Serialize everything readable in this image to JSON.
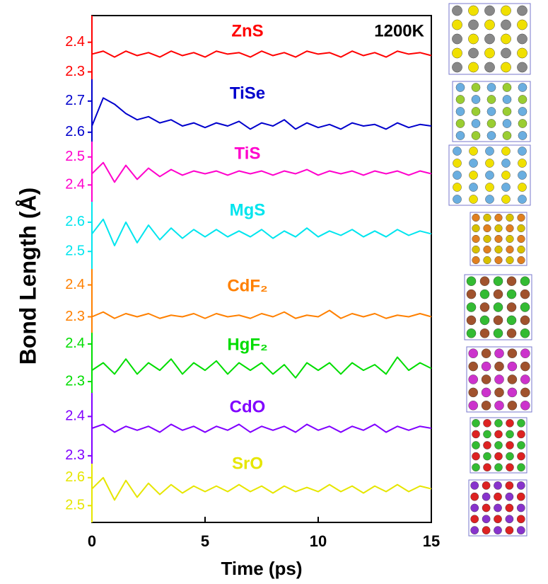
{
  "chart_data": {
    "type": "line",
    "xlabel": "Time (ps)",
    "ylabel": "Bond Length (Å)",
    "annotation": "1200K",
    "xlim": [
      0,
      15
    ],
    "xticks": [
      0,
      5,
      10,
      15
    ],
    "x": [
      0,
      0.5,
      1,
      1.5,
      2,
      2.5,
      3,
      3.5,
      4,
      4.5,
      5,
      5.5,
      6,
      6.5,
      7,
      7.5,
      8,
      8.5,
      9,
      9.5,
      10,
      10.5,
      11,
      11.5,
      12,
      12.5,
      13,
      13.5,
      14,
      14.5,
      15
    ],
    "series": [
      {
        "name": "ZnS",
        "color": "#ff0000",
        "ylim": [
          2.275,
          2.49
        ],
        "yticks": [
          2.3,
          2.4
        ],
        "values": [
          2.36,
          2.37,
          2.35,
          2.37,
          2.355,
          2.365,
          2.35,
          2.37,
          2.355,
          2.365,
          2.35,
          2.37,
          2.36,
          2.365,
          2.35,
          2.37,
          2.355,
          2.365,
          2.35,
          2.37,
          2.36,
          2.365,
          2.35,
          2.37,
          2.355,
          2.365,
          2.35,
          2.37,
          2.36,
          2.365,
          2.355
        ]
      },
      {
        "name": "TiSe",
        "color": "#0000cc",
        "ylim": [
          2.57,
          2.77
        ],
        "yticks": [
          2.6,
          2.7
        ],
        "values": [
          2.62,
          2.71,
          2.69,
          2.66,
          2.64,
          2.65,
          2.63,
          2.64,
          2.62,
          2.63,
          2.615,
          2.63,
          2.62,
          2.635,
          2.61,
          2.63,
          2.62,
          2.64,
          2.61,
          2.63,
          2.615,
          2.625,
          2.61,
          2.63,
          2.62,
          2.625,
          2.61,
          2.63,
          2.615,
          2.625,
          2.62
        ]
      },
      {
        "name": "TiS",
        "color": "#ff00cc",
        "ylim": [
          2.34,
          2.555
        ],
        "yticks": [
          2.4,
          2.5
        ],
        "values": [
          2.44,
          2.48,
          2.41,
          2.47,
          2.42,
          2.46,
          2.43,
          2.455,
          2.435,
          2.45,
          2.44,
          2.45,
          2.435,
          2.45,
          2.44,
          2.45,
          2.435,
          2.45,
          2.44,
          2.455,
          2.435,
          2.45,
          2.44,
          2.45,
          2.435,
          2.45,
          2.44,
          2.45,
          2.435,
          2.45,
          2.44
        ]
      },
      {
        "name": "MgS",
        "color": "#00e5ee",
        "ylim": [
          2.44,
          2.67
        ],
        "yticks": [
          2.5,
          2.6
        ],
        "values": [
          2.56,
          2.61,
          2.52,
          2.6,
          2.53,
          2.59,
          2.54,
          2.58,
          2.545,
          2.575,
          2.55,
          2.575,
          2.55,
          2.57,
          2.55,
          2.575,
          2.545,
          2.57,
          2.55,
          2.58,
          2.55,
          2.57,
          2.555,
          2.575,
          2.55,
          2.57,
          2.55,
          2.575,
          2.555,
          2.57,
          2.56
        ]
      },
      {
        "name": "CdF₂",
        "color": "#ff8000",
        "ylim": [
          2.25,
          2.45
        ],
        "yticks": [
          2.3,
          2.4
        ],
        "values": [
          2.3,
          2.315,
          2.295,
          2.31,
          2.3,
          2.31,
          2.295,
          2.305,
          2.3,
          2.31,
          2.295,
          2.31,
          2.3,
          2.305,
          2.295,
          2.31,
          2.3,
          2.315,
          2.295,
          2.305,
          2.3,
          2.32,
          2.295,
          2.31,
          2.3,
          2.31,
          2.295,
          2.305,
          2.3,
          2.31,
          2.3
        ]
      },
      {
        "name": "HgF₂",
        "color": "#00dd00",
        "ylim": [
          2.27,
          2.43
        ],
        "yticks": [
          2.3,
          2.4
        ],
        "values": [
          2.33,
          2.35,
          2.32,
          2.36,
          2.32,
          2.35,
          2.33,
          2.36,
          2.32,
          2.35,
          2.33,
          2.355,
          2.32,
          2.35,
          2.33,
          2.35,
          2.32,
          2.345,
          2.31,
          2.35,
          2.33,
          2.35,
          2.32,
          2.35,
          2.33,
          2.345,
          2.32,
          2.365,
          2.33,
          2.35,
          2.335
        ]
      },
      {
        "name": "CdO",
        "color": "#8000ff",
        "ylim": [
          2.28,
          2.46
        ],
        "yticks": [
          2.3,
          2.4
        ],
        "values": [
          2.37,
          2.38,
          2.36,
          2.375,
          2.365,
          2.375,
          2.36,
          2.38,
          2.365,
          2.375,
          2.36,
          2.375,
          2.365,
          2.38,
          2.36,
          2.375,
          2.365,
          2.375,
          2.36,
          2.38,
          2.365,
          2.375,
          2.36,
          2.375,
          2.365,
          2.38,
          2.36,
          2.375,
          2.365,
          2.375,
          2.37
        ]
      },
      {
        "name": "SrO",
        "color": "#e6e600",
        "ylim": [
          2.44,
          2.65
        ],
        "yticks": [
          2.5,
          2.6
        ],
        "values": [
          2.56,
          2.6,
          2.52,
          2.59,
          2.53,
          2.58,
          2.54,
          2.575,
          2.545,
          2.57,
          2.55,
          2.57,
          2.55,
          2.575,
          2.55,
          2.57,
          2.545,
          2.57,
          2.55,
          2.565,
          2.55,
          2.575,
          2.55,
          2.57,
          2.545,
          2.57,
          2.55,
          2.575,
          2.55,
          2.57,
          2.56
        ]
      }
    ]
  }
}
